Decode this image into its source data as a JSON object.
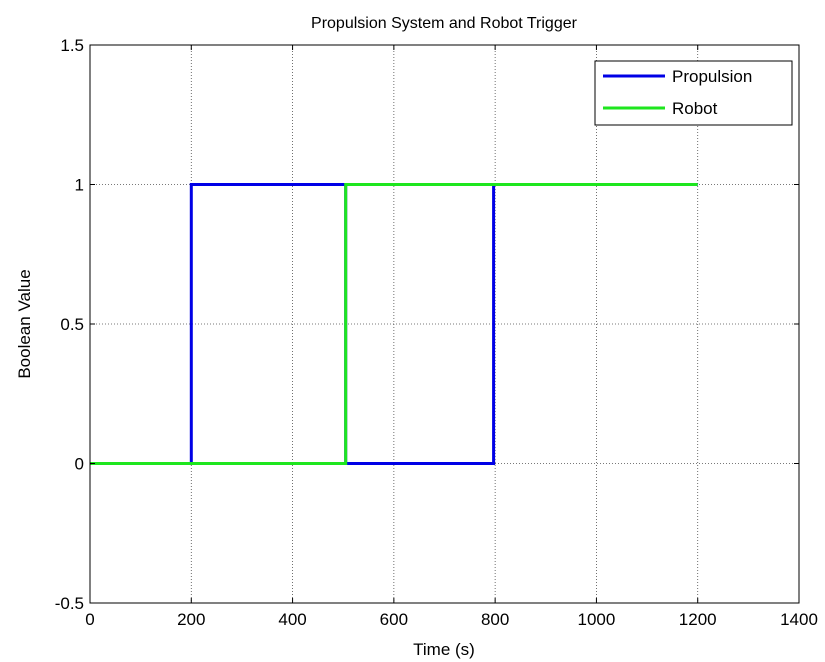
{
  "chart_data": {
    "type": "line",
    "title": "Propulsion System and Robot Trigger",
    "xlabel": "Time (s)",
    "ylabel": "Boolean Value",
    "xlim": [
      0,
      1400
    ],
    "ylim": [
      -0.5,
      1.5
    ],
    "xticks": [
      0,
      200,
      400,
      600,
      800,
      1000,
      1200,
      1400
    ],
    "xtick_labels": [
      "0",
      "200",
      "400",
      "600",
      "800",
      "1000",
      "1200",
      "1400"
    ],
    "yticks": [
      -0.5,
      0,
      0.5,
      1,
      1.5
    ],
    "ytick_labels": [
      "-0.5",
      "0",
      "0.5",
      "1",
      "1.5"
    ],
    "grid": true,
    "legend_position": "top-right",
    "series": [
      {
        "name": "Propulsion",
        "color": "#0000e6",
        "x": [
          0,
          200,
          200,
          505,
          505,
          797,
          797,
          1200
        ],
        "y": [
          0,
          0,
          1,
          1,
          0,
          0,
          1,
          1
        ]
      },
      {
        "name": "Robot",
        "color": "#1ee61e",
        "x": [
          0,
          505,
          505,
          1200
        ],
        "y": [
          0,
          0,
          1,
          1
        ]
      }
    ]
  }
}
